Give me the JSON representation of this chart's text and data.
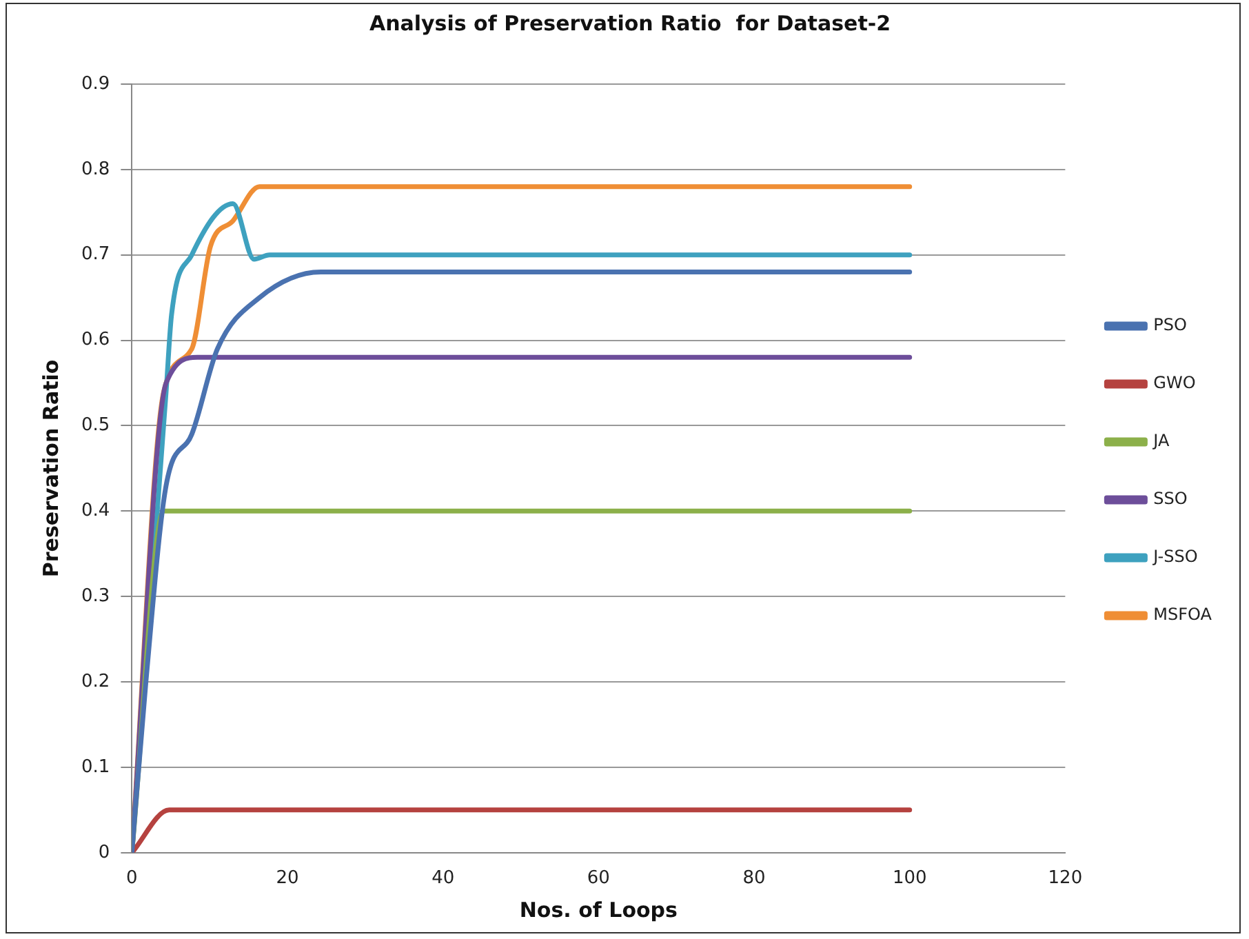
{
  "chart_data": {
    "type": "line",
    "title": "Analysis of Preservation Ratio  for Dataset-2",
    "xlabel": "Nos. of Loops",
    "ylabel": "Preservation Ratio",
    "xlim": [
      0,
      120
    ],
    "xticks": [
      0,
      20,
      40,
      60,
      80,
      100,
      120
    ],
    "ylim": [
      0,
      0.9
    ],
    "yticks": [
      0,
      0.1,
      0.2,
      0.3,
      0.4,
      0.5,
      0.6,
      0.7,
      0.8,
      0.9
    ],
    "grid": "y",
    "legend": "right",
    "marker": "none",
    "line_style": "solid",
    "series": [
      {
        "name": "PSO",
        "color": "#4a72b0",
        "x": [
          0,
          1.8,
          4.4,
          7.7,
          11,
          16.4,
          24.3,
          100
        ],
        "values": [
          0,
          0.2,
          0.43,
          0.49,
          0.59,
          0.65,
          0.68,
          0.68
        ]
      },
      {
        "name": "GWO",
        "color": "#b5423f",
        "x": [
          0,
          4.8,
          100
        ],
        "values": [
          0,
          0.05,
          0.05
        ]
      },
      {
        "name": "JA",
        "color": "#8cb04a",
        "x": [
          0,
          4.1,
          100
        ],
        "values": [
          0,
          0.4,
          0.4
        ]
      },
      {
        "name": "SSO",
        "color": "#6d4e9a",
        "x": [
          0,
          4.4,
          8.4,
          100
        ],
        "values": [
          0,
          0.55,
          0.58,
          0.58
        ]
      },
      {
        "name": "J-SSO",
        "color": "#3ea1bf",
        "x": [
          0,
          4.4,
          5.1,
          7.7,
          13,
          15.7,
          17.7,
          100
        ],
        "values": [
          0,
          0.54,
          0.63,
          0.7,
          0.76,
          0.695,
          0.7,
          0.7
        ]
      },
      {
        "name": "MSFOA",
        "color": "#ef8e35",
        "x": [
          0,
          4.1,
          7.7,
          10.1,
          13,
          16.4,
          100
        ],
        "values": [
          0,
          0.54,
          0.59,
          0.71,
          0.74,
          0.78,
          0.78
        ]
      }
    ]
  }
}
